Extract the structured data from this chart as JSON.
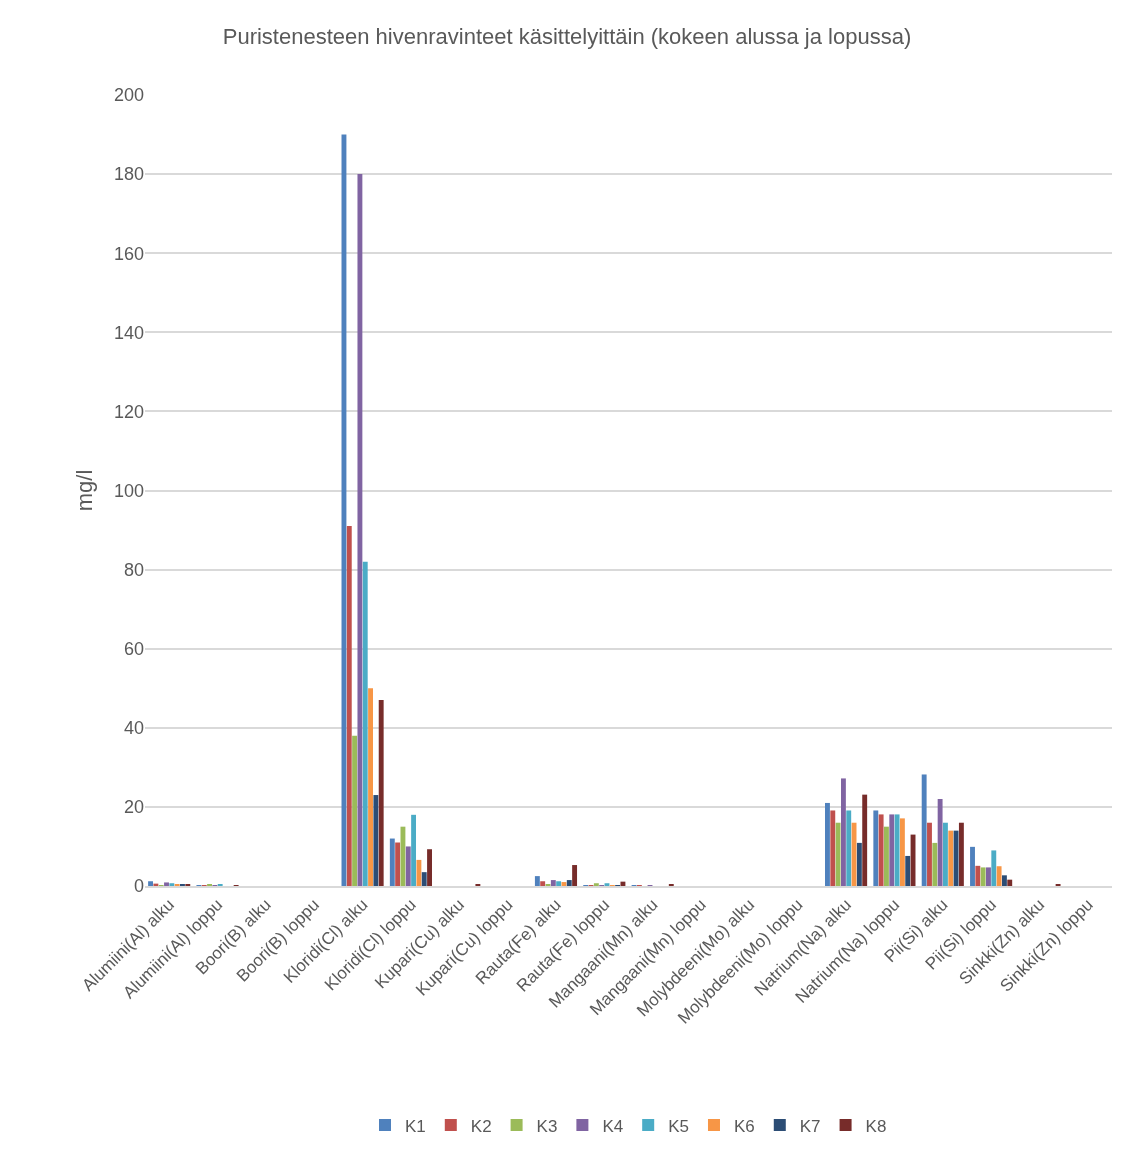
{
  "chart_data": {
    "type": "bar",
    "title": "Puristenesteen hivenravinteet käsittelyittäin (kokeen alussa ja lopussa)",
    "ylabel": "mg/l",
    "categories": [
      "Alumiini(Al) alku",
      "Alumiini(Al) loppu",
      "Boori(B) alku",
      "Boori(B) loppu",
      "Kloridi(Cl) alku",
      "Kloridi(Cl) loppu",
      "Kupari(Cu) alku",
      "Kupari(Cu) loppu",
      "Rauta(Fe) alku",
      "Rauta(Fe) loppu",
      "Mangaani(Mn) alku",
      "Mangaani(Mn) loppu",
      "Molybdeeni(Mo) alku",
      "Molybdeeni(Mo) loppu",
      "Natrium(Na) alku",
      "Natrium(Na) loppu",
      "Pii(Si) alku",
      "Pii(Si) loppu",
      "Sinkki(Zn) alku",
      "Sinkki(Zn) loppu"
    ],
    "series": [
      {
        "name": "K1",
        "color": "#4f81bd",
        "values": [
          1.2,
          0.1,
          0,
          0,
          190,
          12,
          0,
          0,
          2.5,
          0.2,
          0.2,
          0,
          0,
          0,
          21,
          19.1,
          28.2,
          9.9,
          0,
          0
        ]
      },
      {
        "name": "K2",
        "color": "#c0504d",
        "values": [
          0.6,
          0.2,
          0,
          0,
          91,
          11,
          0,
          0,
          1.2,
          0.2,
          0.2,
          0,
          0,
          0,
          19.1,
          18.1,
          16,
          5.1,
          0,
          0
        ]
      },
      {
        "name": "K3",
        "color": "#9bbb59",
        "values": [
          0.2,
          0.3,
          0,
          0,
          38,
          15,
          0,
          0,
          0.5,
          0.7,
          0,
          0,
          0,
          0,
          16,
          15,
          10.9,
          4.7,
          0,
          0
        ]
      },
      {
        "name": "K4",
        "color": "#8064a2",
        "values": [
          0.9,
          0.2,
          0,
          0,
          180,
          10,
          0,
          0,
          1.5,
          0.2,
          0.2,
          0,
          0,
          0,
          27.2,
          18.1,
          22,
          4.7,
          0,
          0
        ]
      },
      {
        "name": "K5",
        "color": "#4bacc6",
        "values": [
          0.7,
          0.5,
          0,
          0,
          82,
          18,
          0,
          0,
          1.2,
          0.7,
          0,
          0,
          0,
          0,
          19.1,
          18.1,
          16,
          9,
          0,
          0
        ]
      },
      {
        "name": "K6",
        "color": "#f79646",
        "values": [
          0.5,
          0,
          0,
          0,
          50,
          6.6,
          0,
          0,
          1,
          0.2,
          0,
          0,
          0,
          0,
          16,
          17.1,
          14,
          5,
          0,
          0
        ]
      },
      {
        "name": "K7",
        "color": "#2c4d75",
        "values": [
          0.5,
          0,
          0,
          0,
          23,
          3.5,
          0,
          0,
          1.5,
          0.2,
          0,
          0,
          0,
          0,
          10.9,
          7.6,
          14,
          2.7,
          0,
          0
        ]
      },
      {
        "name": "K8",
        "color": "#772c2a",
        "values": [
          0.3,
          0.2,
          0,
          0,
          47,
          9.3,
          0.4,
          0,
          5.3,
          1.1,
          0.5,
          0,
          0,
          0,
          23.1,
          13,
          16,
          1.6,
          0.3,
          0
        ]
      }
    ],
    "ylim": [
      0,
      200
    ],
    "yticks": [
      0,
      20,
      40,
      60,
      80,
      100,
      120,
      140,
      160,
      180,
      200
    ],
    "grid": "y",
    "legend": "bottom"
  }
}
